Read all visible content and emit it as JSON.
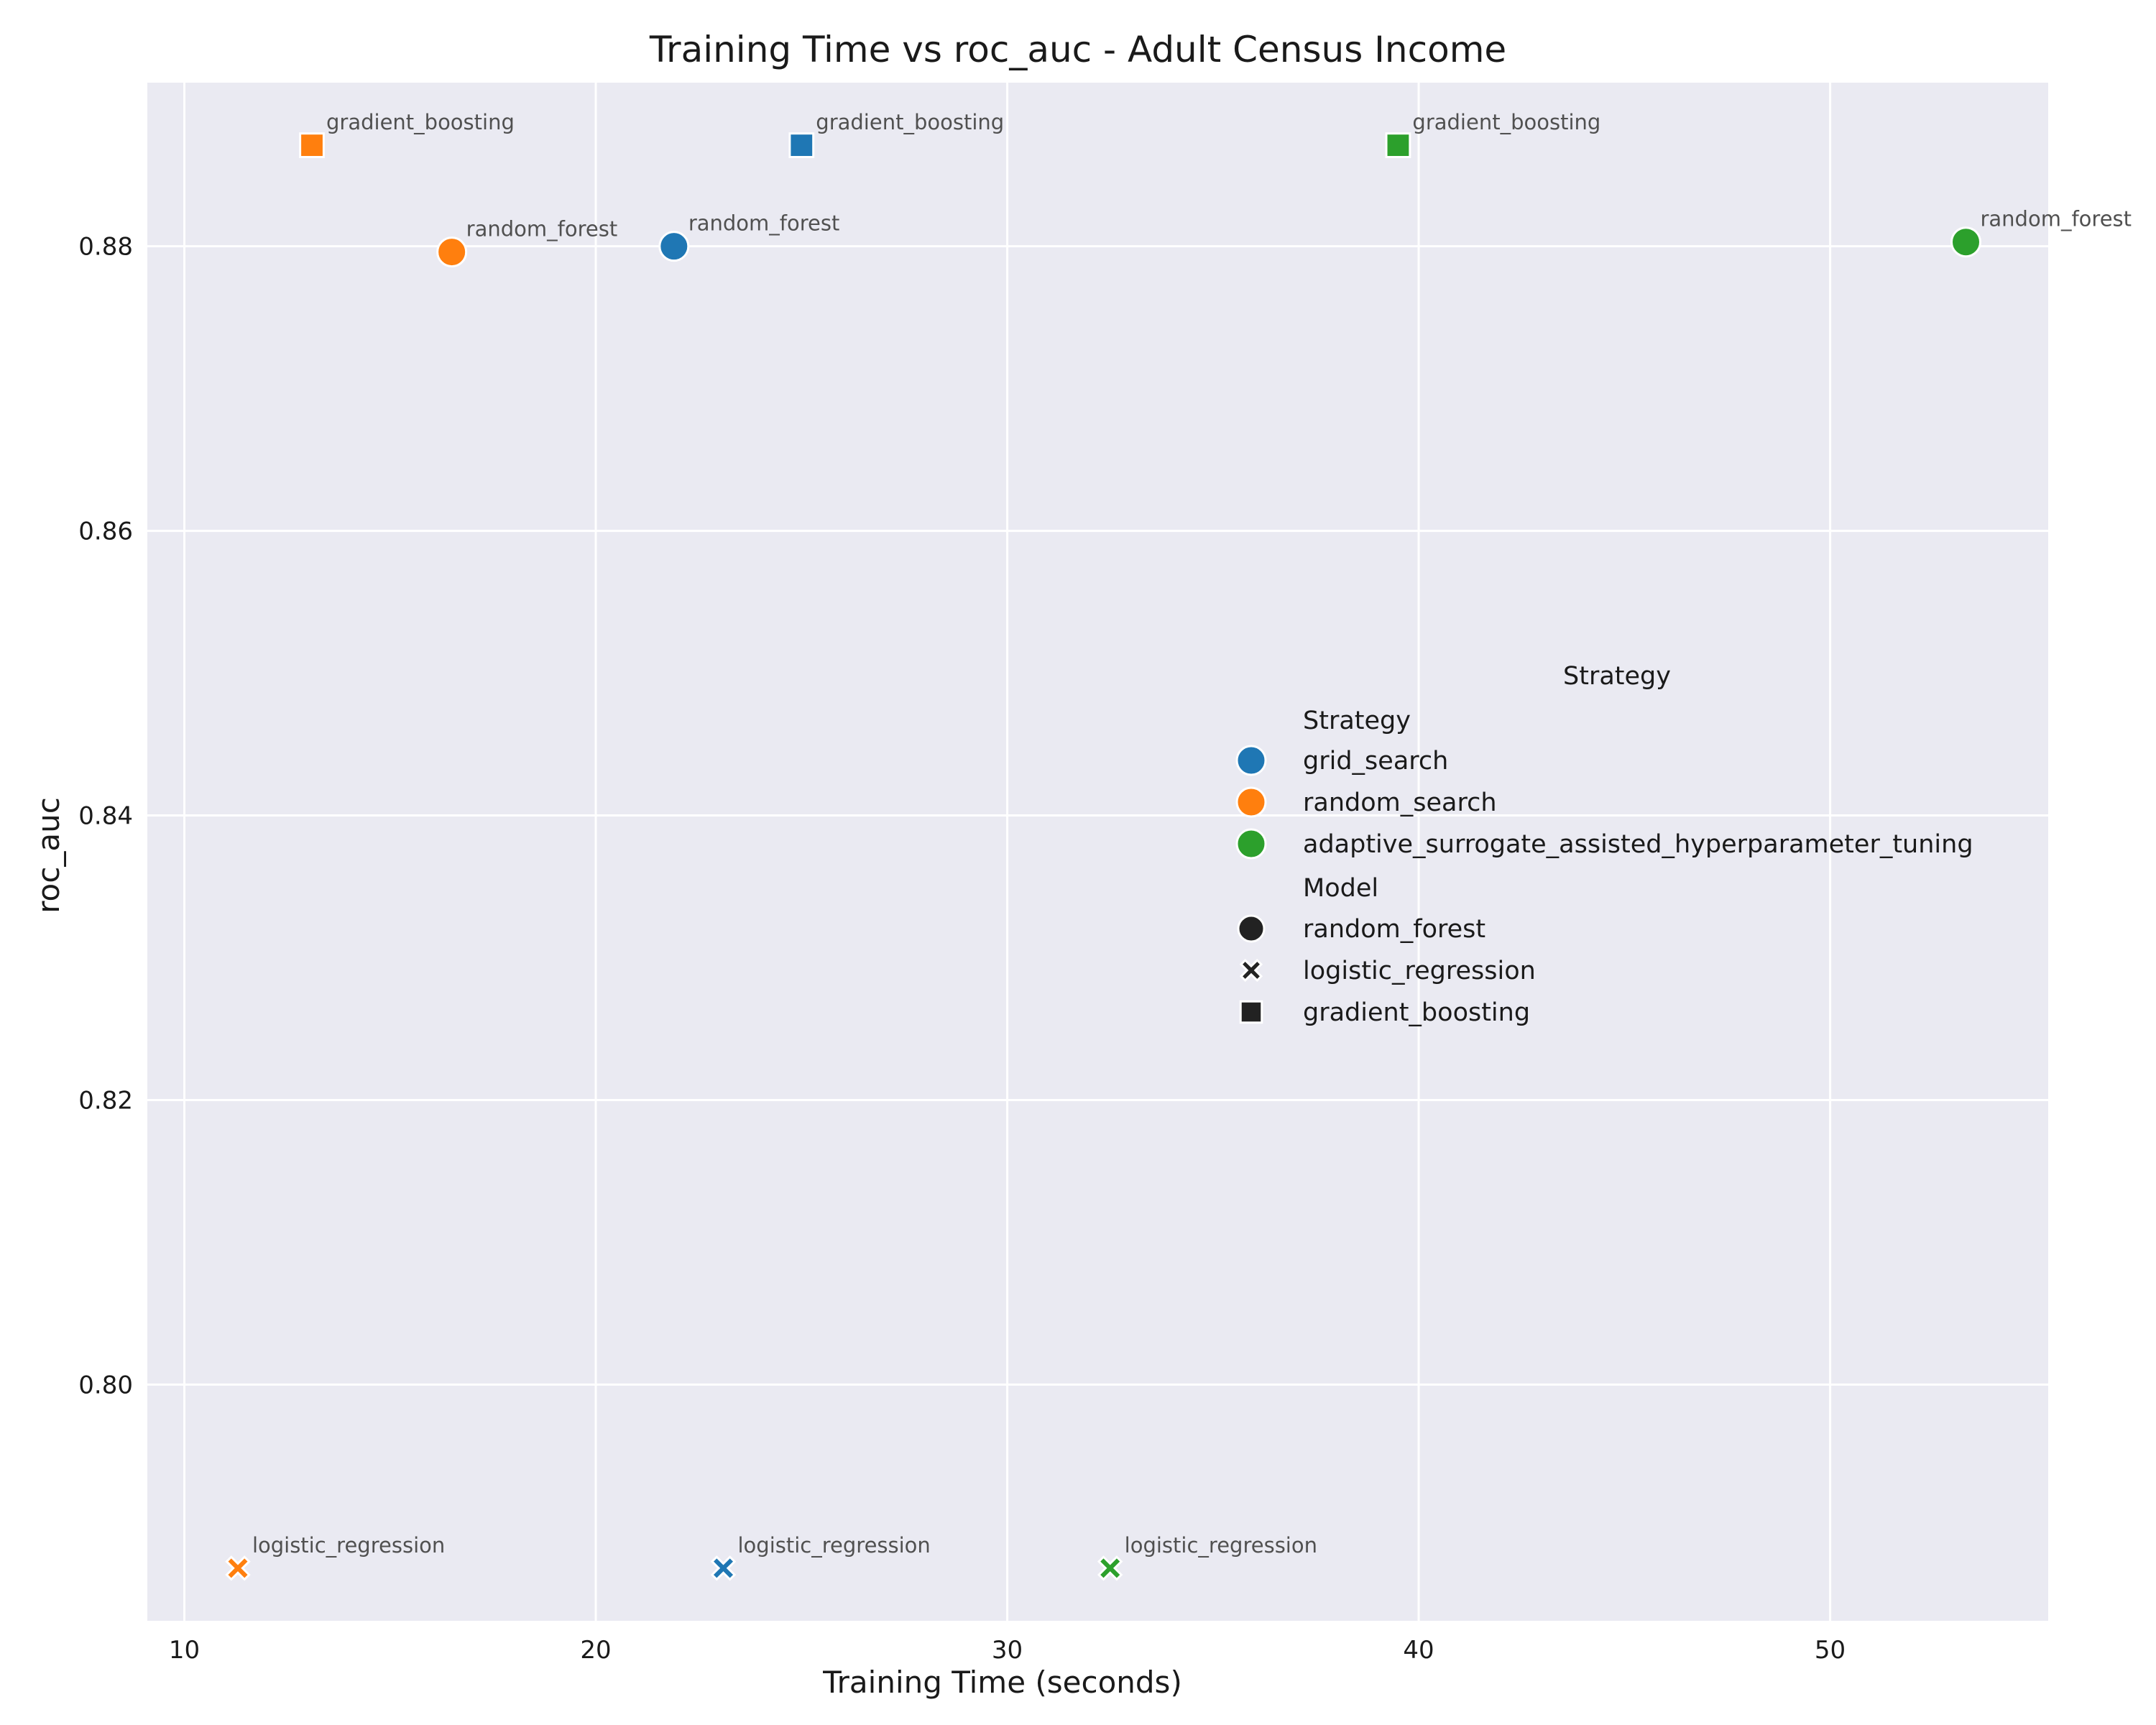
{
  "chart_data": {
    "type": "scatter",
    "title": "Training Time vs roc_auc - Adult Census Income",
    "xlabel": "Training Time (seconds)",
    "ylabel": "roc_auc",
    "xlim": [
      9.1,
      55.3
    ],
    "ylim": [
      0.7834,
      0.8915
    ],
    "xticks": [
      10,
      20,
      30,
      40,
      50
    ],
    "xtick_labels": [
      "10",
      "20",
      "30",
      "40",
      "50"
    ],
    "yticks": [
      0.8,
      0.82,
      0.84,
      0.86,
      0.88
    ],
    "ytick_labels": [
      "0.80",
      "0.82",
      "0.84",
      "0.86",
      "0.88"
    ],
    "grid": true,
    "strategies": [
      {
        "name": "grid_search",
        "color": "#1f77b4"
      },
      {
        "name": "random_search",
        "color": "#ff7f0e"
      },
      {
        "name": "adaptive_surrogate_assisted_hyperparameter_tuning",
        "color": "#2ca02c"
      }
    ],
    "models": [
      {
        "name": "random_forest",
        "marker": "circle"
      },
      {
        "name": "logistic_regression",
        "marker": "x"
      },
      {
        "name": "gradient_boosting",
        "marker": "square"
      }
    ],
    "points": [
      {
        "strategy": "grid_search",
        "model": "random_forest",
        "x": 21.9,
        "y": 0.88,
        "label": "random_forest"
      },
      {
        "strategy": "grid_search",
        "model": "logistic_regression",
        "x": 23.1,
        "y": 0.7871,
        "label": "logistic_regression"
      },
      {
        "strategy": "grid_search",
        "model": "gradient_boosting",
        "x": 25.0,
        "y": 0.8871,
        "label": "gradient_boosting"
      },
      {
        "strategy": "random_search",
        "model": "random_forest",
        "x": 16.5,
        "y": 0.8796,
        "label": "random_forest"
      },
      {
        "strategy": "random_search",
        "model": "logistic_regression",
        "x": 11.3,
        "y": 0.7871,
        "label": "logistic_regression"
      },
      {
        "strategy": "random_search",
        "model": "gradient_boosting",
        "x": 13.1,
        "y": 0.8871,
        "label": "gradient_boosting"
      },
      {
        "strategy": "adaptive_surrogate_assisted_hyperparameter_tuning",
        "model": "random_forest",
        "x": 53.3,
        "y": 0.8803,
        "label": "random_forest"
      },
      {
        "strategy": "adaptive_surrogate_assisted_hyperparameter_tuning",
        "model": "logistic_regression",
        "x": 32.5,
        "y": 0.7871,
        "label": "logistic_regression"
      },
      {
        "strategy": "adaptive_surrogate_assisted_hyperparameter_tuning",
        "model": "gradient_boosting",
        "x": 39.5,
        "y": 0.8871,
        "label": "gradient_boosting"
      }
    ],
    "legend": {
      "placement": "center-right",
      "title": "Strategy",
      "strategy_header": "Strategy",
      "model_header": "Model"
    }
  }
}
